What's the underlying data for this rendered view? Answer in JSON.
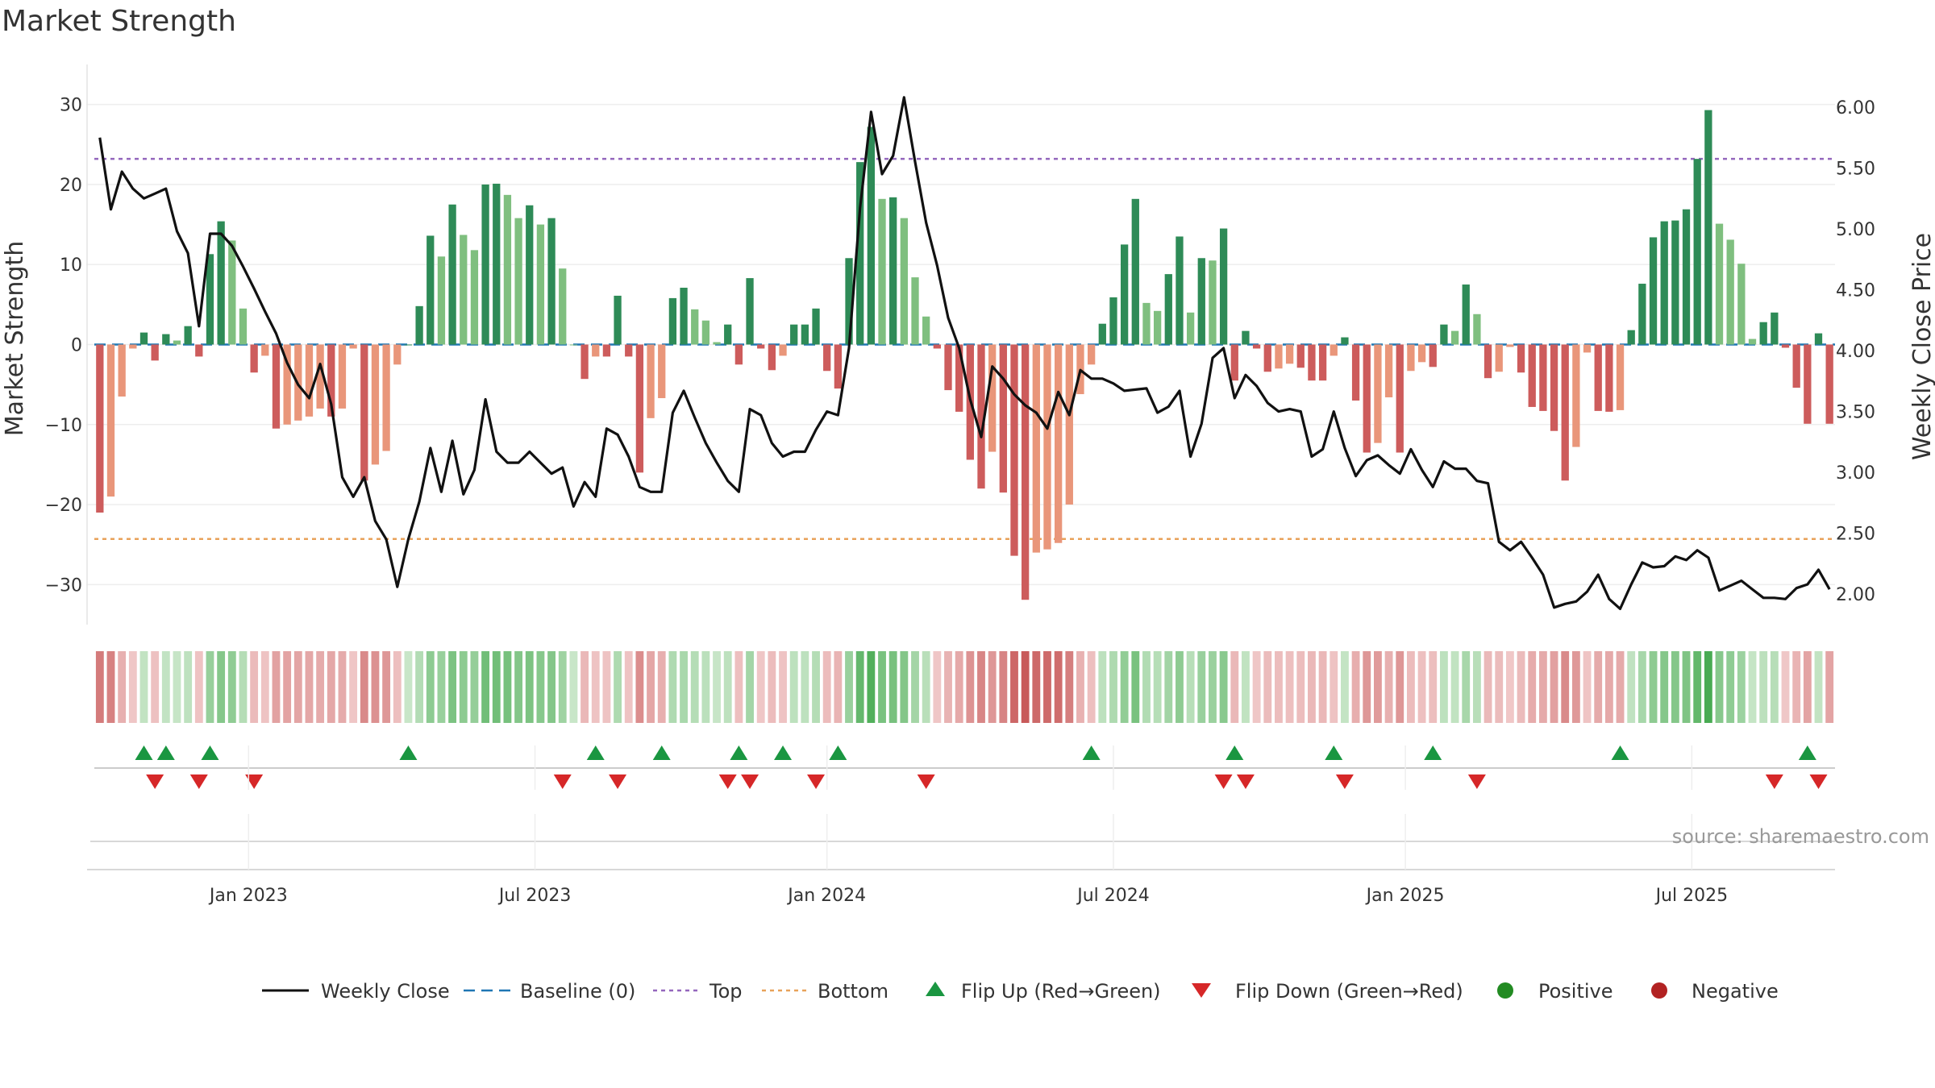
{
  "chart_data": {
    "type": "bar",
    "title": "Market Strength",
    "ylabel_left": "Market Strength",
    "ylabel_right": "Weekly Close Price",
    "source": "source: sharemaestro.com",
    "left_axis": {
      "ylim": [
        -35,
        35
      ],
      "ticks": [
        30,
        20,
        10,
        0,
        -10,
        -20,
        -30
      ],
      "tick_labels": [
        "30",
        "20",
        "10",
        "0",
        "−10",
        "−20",
        "−30"
      ]
    },
    "right_axis": {
      "ylim": [
        1.75,
        6.35
      ],
      "ticks": [
        6.0,
        5.5,
        5.0,
        4.5,
        4.0,
        3.5,
        3.0,
        2.5,
        2.0
      ],
      "tick_labels": [
        "6.00",
        "5.50",
        "5.00",
        "4.50",
        "4.00",
        "3.50",
        "3.00",
        "2.50",
        "2.00"
      ]
    },
    "x_ticks": [
      {
        "label": "Jan 2023",
        "week": 14
      },
      {
        "label": "Jul 2023",
        "week": 40
      },
      {
        "label": "Jan 2024",
        "week": 66.5
      },
      {
        "label": "Jul 2024",
        "week": 92.5
      },
      {
        "label": "Jan 2025",
        "week": 119
      },
      {
        "label": "Jul 2025",
        "week": 145
      }
    ],
    "reference_lines": {
      "baseline": 0,
      "top": 23.2,
      "bottom": -24.3
    },
    "colors": {
      "strong_green": "#2e8b57",
      "light_green": "#7fbf7f",
      "strong_red": "#cd5c5c",
      "light_red": "#e9967a",
      "close_line": "#111111",
      "baseline": "#1f77b4",
      "top": "#9467bd",
      "bottom": "#e8a25a",
      "flip_up": "#1a9641",
      "flip_down": "#d62728",
      "positive": "#228b22",
      "negative": "#b22222"
    },
    "strength": [
      -21,
      -19,
      -6.5,
      -0.5,
      1.5,
      -2,
      1.3,
      0.5,
      2.3,
      -1.5,
      11.3,
      15.4,
      13,
      4.5,
      -3.5,
      -1.4,
      -10.5,
      -10,
      -9.5,
      -9,
      -8,
      -9,
      -8,
      -0.5,
      -17,
      -15,
      -13.3,
      -2.5,
      0,
      4.8,
      13.6,
      11,
      17.5,
      13.7,
      11.8,
      20,
      20.1,
      18.7,
      15.8,
      17.4,
      15,
      15.8,
      9.5,
      0,
      -4.3,
      -1.5,
      -1.5,
      6.1,
      -1.5,
      -16,
      -9.2,
      -6.7,
      5.8,
      7.1,
      4.4,
      3,
      0.3,
      2.5,
      -2.5,
      8.3,
      -0.5,
      -3.2,
      -1.4,
      2.5,
      2.5,
      4.5,
      -3.3,
      -5.5,
      10.8,
      22.8,
      27.2,
      18.2,
      18.4,
      15.8,
      8.4,
      3.5,
      -0.5,
      -5.7,
      -8.4,
      -14.4,
      -18,
      -13.4,
      -18.5,
      -26.4,
      -31.9,
      -26,
      -25.6,
      -24.8,
      -20,
      -6.2,
      -2.5,
      2.6,
      5.9,
      12.5,
      18.2,
      5.2,
      4.2,
      8.8,
      13.5,
      4,
      10.8,
      10.5,
      14.5,
      -4.5,
      1.7,
      -0.5,
      -3.4,
      -3,
      -2.4,
      -2.9,
      -4.5,
      -4.5,
      -1.4,
      0.9,
      -7,
      -13.5,
      -12.3,
      -6.6,
      -13.5,
      -3.3,
      -2.2,
      -2.8,
      2.5,
      1.7,
      7.5,
      3.8,
      -4.2,
      -3.4,
      -0.3,
      -3.5,
      -7.8,
      -8.3,
      -10.8,
      -17,
      -12.8,
      -1,
      -8.3,
      -8.4,
      -8.2,
      1.8,
      7.6,
      13.4,
      15.4,
      15.5,
      16.9,
      23.2,
      29.3,
      15.1,
      13.1,
      10.1,
      0.7,
      2.8,
      4,
      -0.4,
      -5.4,
      -9.9,
      1.4,
      -9.9
    ],
    "close": [
      5.75,
      5.16,
      5.47,
      5.33,
      5.25,
      5.29,
      5.33,
      4.98,
      4.8,
      4.2,
      4.96,
      4.96,
      4.86,
      4.69,
      4.51,
      4.32,
      4.14,
      3.9,
      3.72,
      3.61,
      3.89,
      3.56,
      2.96,
      2.8,
      2.96,
      2.6,
      2.45,
      2.06,
      2.45,
      2.76,
      3.2,
      2.84,
      3.26,
      2.82,
      3.02,
      3.6,
      3.17,
      3.08,
      3.08,
      3.17,
      3.08,
      2.99,
      3.04,
      2.72,
      2.92,
      2.8,
      3.36,
      3.31,
      3.13,
      2.88,
      2.84,
      2.84,
      3.49,
      3.67,
      3.45,
      3.24,
      3.08,
      2.93,
      2.84,
      3.52,
      3.47,
      3.24,
      3.13,
      3.17,
      3.17,
      3.35,
      3.5,
      3.47,
      4.02,
      5.17,
      5.96,
      5.45,
      5.6,
      6.08,
      5.55,
      5.05,
      4.7,
      4.27,
      4.02,
      3.6,
      3.29,
      3.87,
      3.77,
      3.64,
      3.55,
      3.49,
      3.36,
      3.66,
      3.47,
      3.84,
      3.77,
      3.77,
      3.73,
      3.67,
      3.68,
      3.69,
      3.49,
      3.54,
      3.67,
      3.13,
      3.4,
      3.94,
      4.02,
      3.61,
      3.8,
      3.71,
      3.57,
      3.5,
      3.52,
      3.5,
      3.13,
      3.19,
      3.5,
      3.2,
      2.97,
      3.1,
      3.14,
      3.06,
      2.99,
      3.19,
      3.02,
      2.88,
      3.09,
      3.03,
      3.03,
      2.93,
      2.91,
      2.43,
      2.36,
      2.43,
      2.3,
      2.16,
      1.89,
      1.92,
      1.94,
      2.02,
      2.16,
      1.96,
      1.88,
      2.08,
      2.26,
      2.22,
      2.23,
      2.31,
      2.28,
      2.36,
      2.3,
      2.03,
      2.07,
      2.11,
      2.04,
      1.97,
      1.97,
      1.96,
      2.05,
      2.08,
      2.2,
      2.04
    ],
    "flip_up_weeks": [
      4,
      6,
      10,
      28,
      45,
      51,
      58,
      62,
      67,
      90,
      103,
      112,
      121,
      138,
      155
    ],
    "flip_down_weeks": [
      5,
      9,
      14,
      42,
      47,
      57,
      59,
      65,
      75,
      102,
      104,
      113,
      125,
      152,
      156
    ],
    "legend": [
      {
        "label": "Weekly Close",
        "kind": "line"
      },
      {
        "label": "Baseline (0)",
        "kind": "dash"
      },
      {
        "label": "Top",
        "kind": "dot-purple"
      },
      {
        "label": "Bottom",
        "kind": "dot-orange"
      },
      {
        "label": "Flip Up (Red→Green)",
        "kind": "tri-up"
      },
      {
        "label": "Flip Down (Green→Red)",
        "kind": "tri-down"
      },
      {
        "label": "Positive",
        "kind": "circle-pos"
      },
      {
        "label": "Negative",
        "kind": "circle-neg"
      }
    ]
  }
}
